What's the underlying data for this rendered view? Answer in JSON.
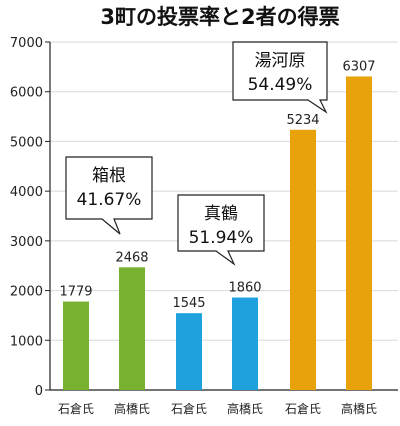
{
  "colors": {
    "green": "#78b12f",
    "blue": "#1ea1dc",
    "orange": "#e8a20c"
  },
  "chart_data": {
    "type": "bar",
    "title": "3町の投票率と2者の得票",
    "xlabel": "",
    "ylabel": "",
    "ylim": [
      0,
      7000
    ],
    "yticks": [
      "0",
      "1000",
      "2000",
      "3000",
      "4000",
      "5000",
      "6000",
      "7000"
    ],
    "grid": true,
    "categories": [
      "石倉氏",
      "高橋氏",
      "石倉氏",
      "高橋氏",
      "石倉氏",
      "高橋氏"
    ],
    "values": [
      1779,
      2468,
      1545,
      1860,
      5234,
      6307
    ],
    "bar_colors": [
      "green",
      "green",
      "blue",
      "blue",
      "orange",
      "orange"
    ],
    "groups": [
      {
        "town": "箱根",
        "turnout": "41.67%",
        "color": "green"
      },
      {
        "town": "真鶴",
        "turnout": "51.94%",
        "color": "blue"
      },
      {
        "town": "湯河原",
        "turnout": "54.49%",
        "color": "orange"
      }
    ]
  }
}
